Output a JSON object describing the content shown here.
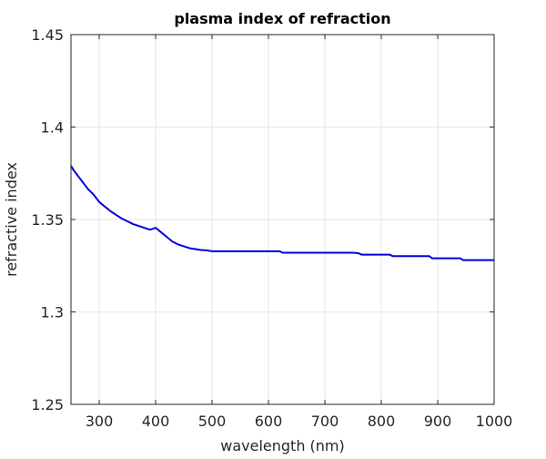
{
  "chart_data": {
    "type": "line",
    "title": "plasma index of refraction",
    "xlabel": "wavelength (nm)",
    "ylabel": "refractive index",
    "xlim": [
      250,
      1000
    ],
    "ylim": [
      1.25,
      1.45
    ],
    "x_ticks": [
      300,
      400,
      500,
      600,
      700,
      800,
      900,
      1000
    ],
    "y_ticks": [
      1.25,
      1.3,
      1.35,
      1.4,
      1.45
    ],
    "x_tick_labels": [
      "300",
      "400",
      "500",
      "600",
      "700",
      "800",
      "900",
      "1000"
    ],
    "y_tick_labels": [
      "1.25",
      "1.3",
      "1.35",
      "1.4",
      "1.45"
    ],
    "grid": true,
    "line_color": "#0000dd",
    "series": [
      {
        "x": [
          250,
          255,
          260,
          265,
          270,
          275,
          280,
          285,
          290,
          295,
          300,
          310,
          320,
          330,
          340,
          350,
          360,
          370,
          380,
          390,
          400,
          410,
          420,
          430,
          440,
          450,
          460,
          470,
          480,
          490,
          500,
          550,
          600,
          620,
          625,
          700,
          750,
          760,
          765,
          800,
          815,
          820,
          850,
          885,
          890,
          900,
          940,
          945,
          1000
        ],
        "y": [
          1.379,
          1.3765,
          1.3745,
          1.3725,
          1.3705,
          1.3685,
          1.3665,
          1.365,
          1.3635,
          1.3615,
          1.3595,
          1.357,
          1.3545,
          1.3525,
          1.3505,
          1.349,
          1.3475,
          1.3465,
          1.3455,
          1.3445,
          1.3455,
          1.343,
          1.3405,
          1.338,
          1.3365,
          1.3355,
          1.3345,
          1.334,
          1.3335,
          1.3333,
          1.3328,
          1.3328,
          1.3328,
          1.3328,
          1.332,
          1.332,
          1.332,
          1.3317,
          1.331,
          1.331,
          1.331,
          1.3302,
          1.3302,
          1.3302,
          1.329,
          1.329,
          1.329,
          1.328,
          1.328
        ]
      }
    ]
  }
}
